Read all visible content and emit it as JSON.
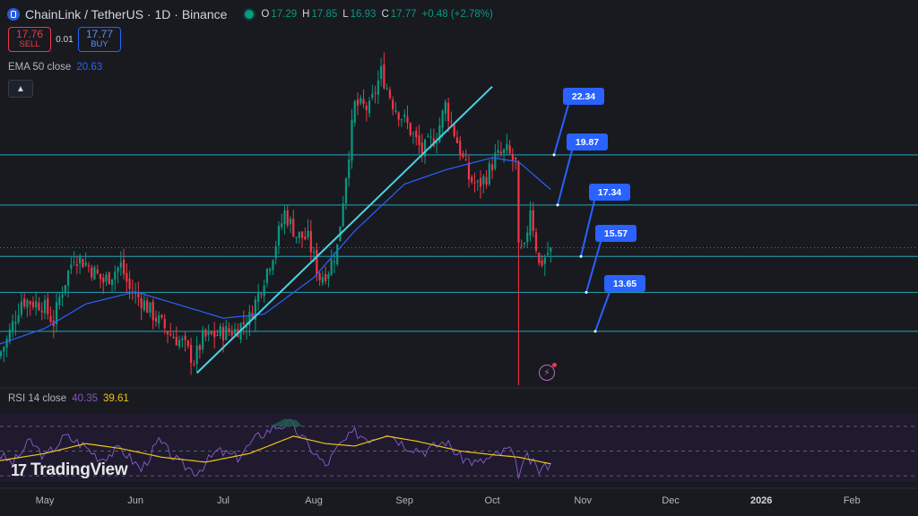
{
  "header": {
    "symbol_title": "ChainLink / TetherUS · 1D · Binance",
    "open_label": "O",
    "open": "17.29",
    "high_label": "H",
    "high": "17.85",
    "low_label": "L",
    "low": "16.93",
    "close_label": "C",
    "close": "17.77",
    "change": "+0.48 (+2.78%)"
  },
  "trade": {
    "sell_price": "17.76",
    "sell_label": "SELL",
    "spread": "0.01",
    "buy_price": "17.77",
    "buy_label": "BUY"
  },
  "ema": {
    "label": "EMA 50 close",
    "value": "20.63"
  },
  "rsi": {
    "label": "RSI 14 close",
    "value": "40.35",
    "ma_value": "39.61"
  },
  "callouts": [
    "22.34",
    "19.87",
    "17.34",
    "15.57",
    "13.65"
  ],
  "logo": {
    "text": "TradingView"
  },
  "icons": {
    "collapse": "chevron-up-icon",
    "flash": "flash-icon",
    "symbol": "chainlink-icon"
  },
  "colors": {
    "background": "#181a20",
    "up": "#089981",
    "down": "#f23645",
    "ema": "#2962ff",
    "rsi": "#7e57c2",
    "rsi_ma": "#f0c419",
    "level": "#26a5b5",
    "trendline": "#4dd0e1",
    "callout": "#2962ff"
  },
  "chart_data": {
    "type": "candlestick",
    "x_ticks": [
      "May",
      "Jun",
      "Jul",
      "Aug",
      "Sep",
      "Oct",
      "Nov",
      "Dec",
      "2026",
      "Feb"
    ],
    "bold_ticks": [
      "2026"
    ],
    "ylim": [
      11.0,
      28.2
    ],
    "levels": [
      22.34,
      19.87,
      17.34,
      15.57,
      13.65
    ],
    "trendline": {
      "from": [
        "2025-06-22",
        11.6
      ],
      "to": [
        "2025-10-01",
        25.7
      ]
    },
    "ohlc_daily": {
      "start": "2025-04-15",
      "close_path": [
        [
          "2025-04-15",
          12.4
        ],
        [
          "2025-04-18",
          13.2
        ],
        [
          "2025-04-23",
          15.2
        ],
        [
          "2025-04-30",
          15.0
        ],
        [
          "2025-05-04",
          14.1
        ],
        [
          "2025-05-06",
          15.3
        ],
        [
          "2025-05-11",
          17.4
        ],
        [
          "2025-05-15",
          17.0
        ],
        [
          "2025-05-21",
          16.1
        ],
        [
          "2025-05-27",
          16.9
        ],
        [
          "2025-05-30",
          15.7
        ],
        [
          "2025-06-03",
          15.2
        ],
        [
          "2025-06-08",
          14.3
        ],
        [
          "2025-06-13",
          13.5
        ],
        [
          "2025-06-17",
          13.1
        ],
        [
          "2025-06-21",
          12.2
        ],
        [
          "2025-06-24",
          13.3
        ],
        [
          "2025-07-01",
          13.6
        ],
        [
          "2025-07-05",
          13.7
        ],
        [
          "2025-07-10",
          14.3
        ],
        [
          "2025-07-14",
          15.9
        ],
        [
          "2025-07-18",
          17.5
        ],
        [
          "2025-07-22",
          19.5
        ],
        [
          "2025-07-26",
          18.4
        ],
        [
          "2025-07-30",
          18.2
        ],
        [
          "2025-08-03",
          16.3
        ],
        [
          "2025-08-06",
          16.7
        ],
        [
          "2025-08-09",
          17.8
        ],
        [
          "2025-08-12",
          21.4
        ],
        [
          "2025-08-15",
          24.8
        ],
        [
          "2025-08-20",
          24.6
        ],
        [
          "2025-08-24",
          26.4
        ],
        [
          "2025-08-28",
          24.9
        ],
        [
          "2025-09-02",
          23.8
        ],
        [
          "2025-09-07",
          22.5
        ],
        [
          "2025-09-12",
          23.3
        ],
        [
          "2025-09-15",
          24.8
        ],
        [
          "2025-09-19",
          23.0
        ],
        [
          "2025-09-23",
          21.2
        ],
        [
          "2025-09-26",
          20.8
        ],
        [
          "2025-09-29",
          21.3
        ],
        [
          "2025-10-02",
          22.2
        ],
        [
          "2025-10-06",
          22.5
        ],
        [
          "2025-10-09",
          21.9
        ],
        [
          "2025-10-10",
          17.6
        ],
        [
          "2025-10-12",
          17.6
        ],
        [
          "2025-10-14",
          19.8
        ],
        [
          "2025-10-17",
          16.9
        ],
        [
          "2025-10-19",
          17.3
        ],
        [
          "2025-10-21",
          17.77
        ]
      ]
    },
    "ema50": [
      [
        "2025-04-15",
        13.0
      ],
      [
        "2025-05-01",
        13.8
      ],
      [
        "2025-05-15",
        15.0
      ],
      [
        "2025-06-01",
        15.6
      ],
      [
        "2025-06-15",
        15.0
      ],
      [
        "2025-07-01",
        14.3
      ],
      [
        "2025-07-15",
        14.5
      ],
      [
        "2025-08-01",
        16.3
      ],
      [
        "2025-08-15",
        18.6
      ],
      [
        "2025-09-01",
        20.9
      ],
      [
        "2025-09-15",
        21.6
      ],
      [
        "2025-10-01",
        22.2
      ],
      [
        "2025-10-10",
        22.0
      ],
      [
        "2025-10-21",
        20.63
      ]
    ],
    "rsi": {
      "levels": [
        70,
        50,
        30
      ],
      "values": [
        [
          "2025-04-15",
          48
        ],
        [
          "2025-04-20",
          40
        ],
        [
          "2025-04-26",
          58
        ],
        [
          "2025-05-01",
          45
        ],
        [
          "2025-05-08",
          62
        ],
        [
          "2025-05-14",
          55
        ],
        [
          "2025-05-20",
          44
        ],
        [
          "2025-05-27",
          52
        ],
        [
          "2025-06-03",
          35
        ],
        [
          "2025-06-09",
          58
        ],
        [
          "2025-06-16",
          40
        ],
        [
          "2025-06-22",
          33
        ],
        [
          "2025-06-29",
          50
        ],
        [
          "2025-07-06",
          45
        ],
        [
          "2025-07-13",
          62
        ],
        [
          "2025-07-19",
          70
        ],
        [
          "2025-07-24",
          72
        ],
        [
          "2025-07-31",
          52
        ],
        [
          "2025-08-05",
          38
        ],
        [
          "2025-08-10",
          55
        ],
        [
          "2025-08-15",
          65
        ],
        [
          "2025-08-20",
          60
        ],
        [
          "2025-08-26",
          66
        ],
        [
          "2025-09-01",
          55
        ],
        [
          "2025-09-08",
          50
        ],
        [
          "2025-09-15",
          58
        ],
        [
          "2025-09-20",
          45
        ],
        [
          "2025-09-26",
          40
        ],
        [
          "2025-10-02",
          46
        ],
        [
          "2025-10-07",
          52
        ],
        [
          "2025-10-10",
          32
        ],
        [
          "2025-10-13",
          45
        ],
        [
          "2025-10-17",
          34
        ],
        [
          "2025-10-21",
          40.35
        ]
      ],
      "ma": [
        [
          "2025-04-15",
          42
        ],
        [
          "2025-05-01",
          48
        ],
        [
          "2025-05-15",
          56
        ],
        [
          "2025-05-27",
          52
        ],
        [
          "2025-06-10",
          45
        ],
        [
          "2025-06-25",
          41
        ],
        [
          "2025-07-10",
          48
        ],
        [
          "2025-07-25",
          62
        ],
        [
          "2025-08-05",
          56
        ],
        [
          "2025-08-15",
          54
        ],
        [
          "2025-08-26",
          62
        ],
        [
          "2025-09-05",
          58
        ],
        [
          "2025-09-20",
          50
        ],
        [
          "2025-10-01",
          47
        ],
        [
          "2025-10-10",
          45
        ],
        [
          "2025-10-21",
          39.61
        ]
      ]
    }
  }
}
